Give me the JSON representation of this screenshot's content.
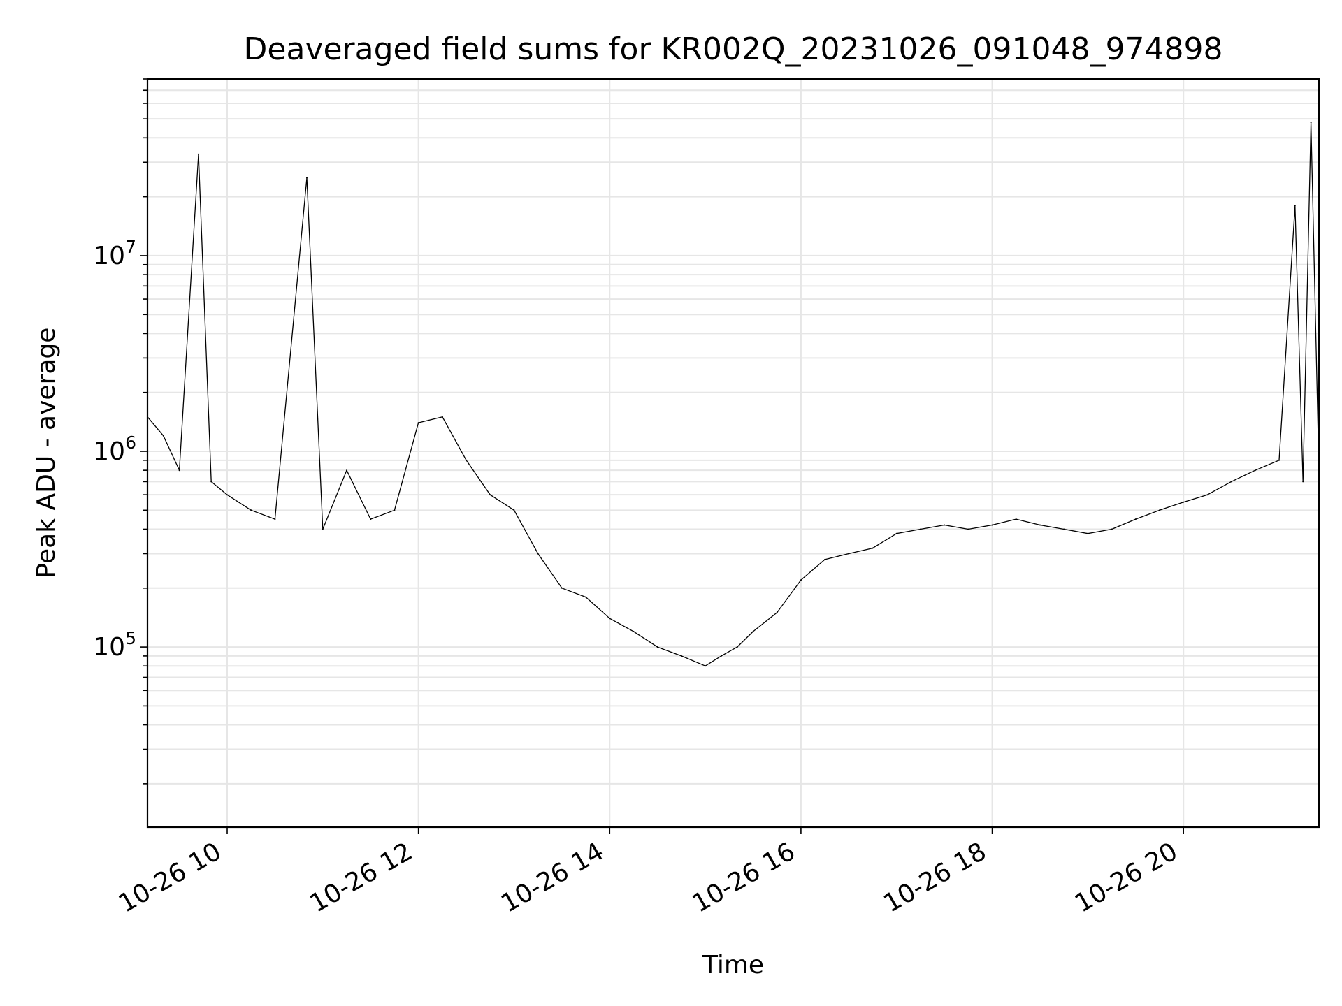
{
  "chart_data": {
    "type": "line",
    "title": "Deaveraged field sums for KR002Q_20231026_091048_974898",
    "xlabel": "Time",
    "ylabel": "Peak ADU - average",
    "yscale": "log",
    "xlim": [
      "2023-10-26 09:10",
      "2023-10-26 21:25"
    ],
    "ylim": [
      12000,
      80000000
    ],
    "x_ticks": [
      {
        "value": "2023-10-26 10:00",
        "label": "10-26 10"
      },
      {
        "value": "2023-10-26 12:00",
        "label": "10-26 12"
      },
      {
        "value": "2023-10-26 14:00",
        "label": "10-26 14"
      },
      {
        "value": "2023-10-26 16:00",
        "label": "10-26 16"
      },
      {
        "value": "2023-10-26 18:00",
        "label": "10-26 18"
      },
      {
        "value": "2023-10-26 20:00",
        "label": "10-26 20"
      }
    ],
    "y_ticks": [
      {
        "value": 100000,
        "base": "10",
        "exp": "5"
      },
      {
        "value": 1000000,
        "base": "10",
        "exp": "6"
      },
      {
        "value": 10000000,
        "base": "10",
        "exp": "7"
      }
    ],
    "grid": true,
    "series_color": "#000000",
    "x": [
      "2023-10-26 09:10",
      "2023-10-26 09:20",
      "2023-10-26 09:30",
      "2023-10-26 09:42",
      "2023-10-26 09:50",
      "2023-10-26 10:00",
      "2023-10-26 10:15",
      "2023-10-26 10:30",
      "2023-10-26 10:50",
      "2023-10-26 11:00",
      "2023-10-26 11:15",
      "2023-10-26 11:30",
      "2023-10-26 11:45",
      "2023-10-26 12:00",
      "2023-10-26 12:15",
      "2023-10-26 12:30",
      "2023-10-26 12:45",
      "2023-10-26 13:00",
      "2023-10-26 13:15",
      "2023-10-26 13:30",
      "2023-10-26 13:45",
      "2023-10-26 14:00",
      "2023-10-26 14:15",
      "2023-10-26 14:30",
      "2023-10-26 14:45",
      "2023-10-26 15:00",
      "2023-10-26 15:10",
      "2023-10-26 15:20",
      "2023-10-26 15:30",
      "2023-10-26 15:45",
      "2023-10-26 16:00",
      "2023-10-26 16:15",
      "2023-10-26 16:30",
      "2023-10-26 16:45",
      "2023-10-26 17:00",
      "2023-10-26 17:15",
      "2023-10-26 17:30",
      "2023-10-26 17:45",
      "2023-10-26 18:00",
      "2023-10-26 18:15",
      "2023-10-26 18:30",
      "2023-10-26 18:45",
      "2023-10-26 19:00",
      "2023-10-26 19:15",
      "2023-10-26 19:30",
      "2023-10-26 19:45",
      "2023-10-26 20:00",
      "2023-10-26 20:15",
      "2023-10-26 20:30",
      "2023-10-26 20:45",
      "2023-10-26 21:00",
      "2023-10-26 21:10",
      "2023-10-26 21:15",
      "2023-10-26 21:20",
      "2023-10-26 21:25"
    ],
    "y": [
      1500000,
      1200000,
      800000,
      33000000,
      700000,
      600000,
      500000,
      450000,
      25000000,
      400000,
      800000,
      450000,
      500000,
      1400000,
      1500000,
      900000,
      600000,
      500000,
      300000,
      200000,
      180000,
      140000,
      120000,
      100000,
      90000,
      80000,
      90000,
      100000,
      120000,
      150000,
      220000,
      280000,
      300000,
      320000,
      380000,
      400000,
      420000,
      400000,
      420000,
      450000,
      420000,
      400000,
      380000,
      400000,
      450000,
      500000,
      550000,
      600000,
      700000,
      800000,
      900000,
      18000000,
      700000,
      48000000,
      800000
    ]
  }
}
